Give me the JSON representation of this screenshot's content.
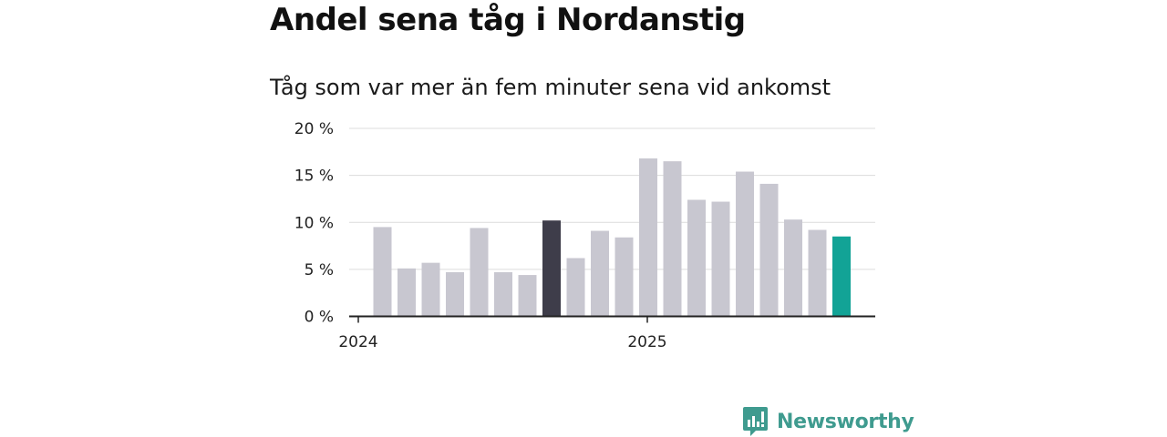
{
  "title": "Andel sena tåg i Nordanstig",
  "subtitle": "Tåg som var mer än fem minuter sena vid ankomst",
  "brand": {
    "name": "Newsworthy",
    "color": "#3f9b8f",
    "icon": "newsworthy-logo-icon"
  },
  "colors": {
    "bar": "#c8c7d0",
    "highlight": "#3e3d4a",
    "latest": "#12a396",
    "grid": "#dcdcdc",
    "axis": "#222222"
  },
  "chart_data": {
    "type": "bar",
    "title": "Andel sena tåg i Nordanstig",
    "subtitle": "Tåg som var mer än fem minuter sena vid ankomst",
    "xlabel": "",
    "ylabel": "",
    "ylim": [
      0,
      20
    ],
    "y_ticks": [
      0,
      5,
      10,
      15,
      20
    ],
    "y_tick_labels": [
      "0 %",
      "5 %",
      "10 %",
      "15 %",
      "20 %"
    ],
    "x_tick_labels": [
      "2024",
      "2025"
    ],
    "x_tick_positions": [
      0,
      12
    ],
    "grid": true,
    "values": [
      9.5,
      5.1,
      5.7,
      4.7,
      9.4,
      4.7,
      4.4,
      10.2,
      6.2,
      9.1,
      8.4,
      16.8,
      16.5,
      12.4,
      12.2,
      15.4,
      14.1,
      10.3,
      9.2,
      8.5
    ],
    "highlight_index": 7,
    "latest_index": 19
  }
}
